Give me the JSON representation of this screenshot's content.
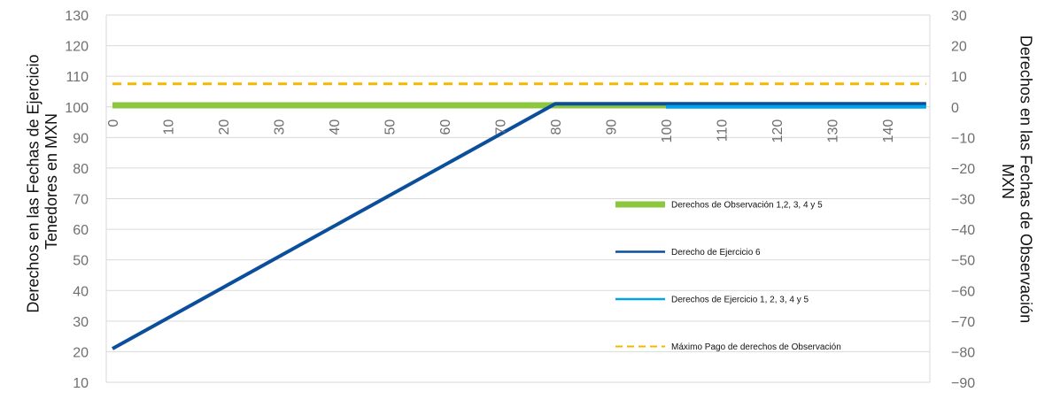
{
  "chart_data": {
    "type": "line",
    "y_axis_left": {
      "label": "Derechos en las Fechas de Ejercicio Tenedores en MXN",
      "label_lines": [
        "Derechos en las Fechas de Ejercicio",
        "Tenedores en MXN"
      ],
      "range": [
        10,
        130
      ],
      "ticks": [
        10,
        20,
        30,
        40,
        50,
        60,
        70,
        80,
        90,
        100,
        110,
        120,
        130
      ]
    },
    "y_axis_right": {
      "label": "Derechos en las Fechas de Observación MXN",
      "label_lines": [
        "Derechos en las Fechas de Observación",
        "MXN"
      ],
      "range": [
        -90,
        30
      ],
      "ticks": [
        -90,
        -80,
        -70,
        -60,
        -50,
        -40,
        -30,
        -20,
        -10,
        0,
        10,
        20,
        30
      ],
      "tick_labels": [
        "−90",
        "−80",
        "−70",
        "−60",
        "−50",
        "−40",
        "−30",
        "−20",
        "−10",
        "0",
        "10",
        "20",
        "30"
      ]
    },
    "x_axis": {
      "range": [
        0,
        147
      ],
      "ticks": [
        0,
        10,
        20,
        30,
        40,
        50,
        60,
        70,
        80,
        90,
        100,
        110,
        120,
        130,
        140
      ],
      "crosses_left_at": 100
    },
    "grid": "horizontal",
    "legend_position": "right-center",
    "series": [
      {
        "name": "Derechos de Observación 1,2, 3, 4 y 5",
        "axis": "left",
        "color": "#8dc63f",
        "style": "solid-thick",
        "x": [
          0,
          147
        ],
        "y": [
          100.5,
          100.5
        ]
      },
      {
        "name": "Derecho de Ejercicio 6",
        "axis": "left",
        "color": "#0b4f9c",
        "style": "solid",
        "x": [
          0,
          80,
          147
        ],
        "y": [
          21,
          101,
          101
        ]
      },
      {
        "name": "Derechos de Ejercicio 1, 2, 3, 4 y 5",
        "axis": "left",
        "color": "#00a2e8",
        "style": "solid",
        "x": [
          100,
          147
        ],
        "y": [
          100,
          100
        ]
      },
      {
        "name": "Máximo Pago de derechos de Observación",
        "axis": "left",
        "color": "#f5b800",
        "style": "dashed",
        "x": [
          0,
          147
        ],
        "y": [
          107.5,
          107.5
        ]
      }
    ]
  }
}
